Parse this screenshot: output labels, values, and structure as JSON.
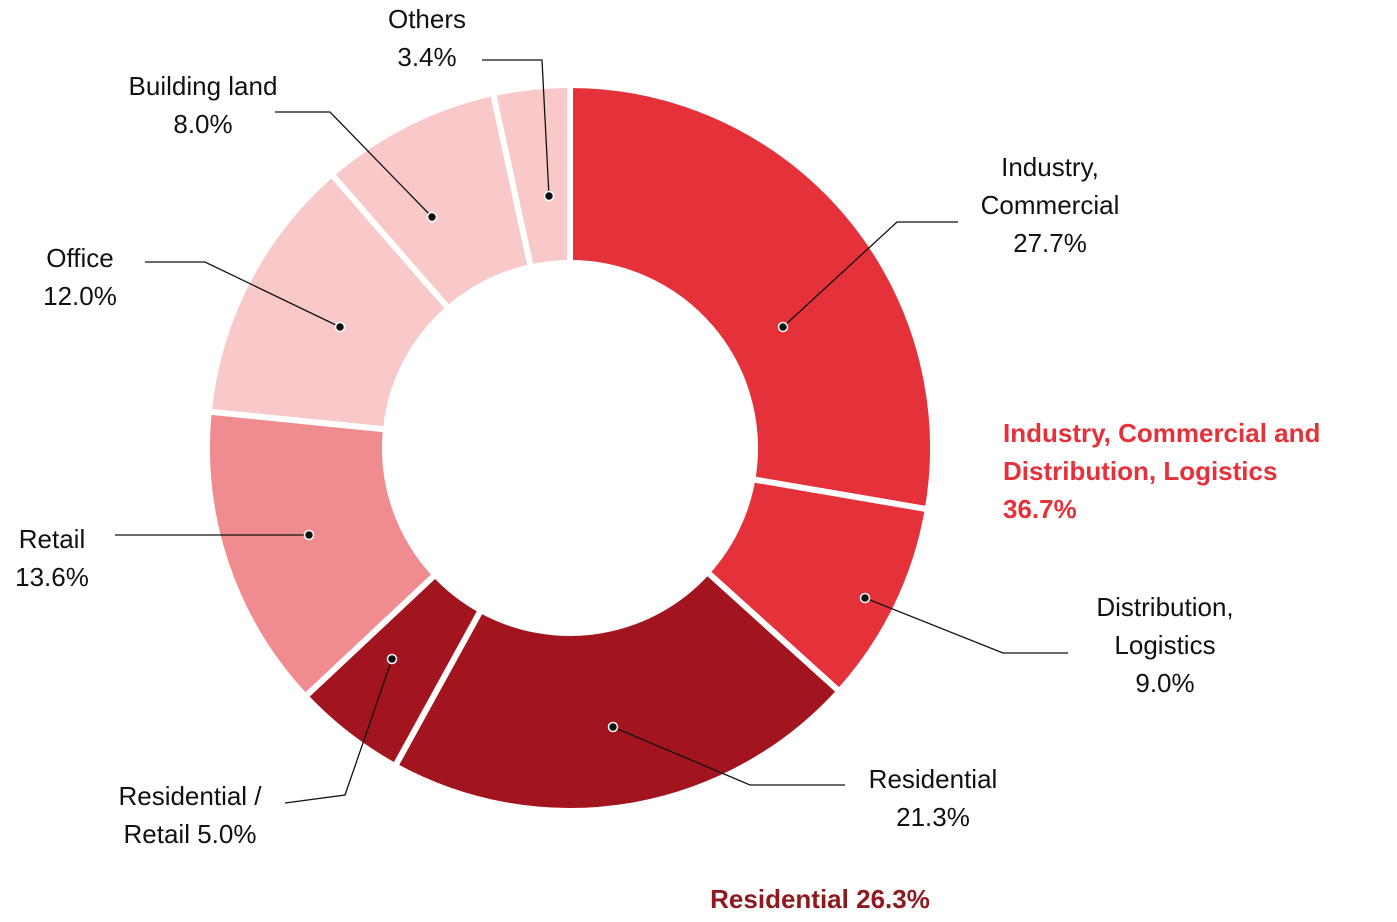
{
  "chart_data": {
    "type": "pie",
    "categories": [
      "Industry, Commercial",
      "Distribution, Logistics",
      "Residential",
      "Residential / Retail",
      "Retail",
      "Office",
      "Building land",
      "Others"
    ],
    "values": [
      27.7,
      9.0,
      21.3,
      5.0,
      13.6,
      12.0,
      8.0,
      3.4
    ],
    "value_labels": [
      "27.7%",
      "9.0%",
      "21.3%",
      "5.0%",
      "13.6%",
      "12.0%",
      "8.0%",
      "3.4%"
    ],
    "colors": [
      "#e5323a",
      "#e5323a",
      "#a3151e",
      "#a3151e",
      "#f08c8f",
      "#f9c9ca",
      "#f9c9ca",
      "#f9c9ca"
    ],
    "groups": [
      {
        "name": "Industry, Commercial and Distribution, Logistics",
        "value": 36.7,
        "value_label": "36.7%",
        "color": "#e5323a"
      },
      {
        "name": "Residential",
        "value": 26.3,
        "value_label": "26.3%",
        "color": "#8e1a1f"
      }
    ]
  }
}
